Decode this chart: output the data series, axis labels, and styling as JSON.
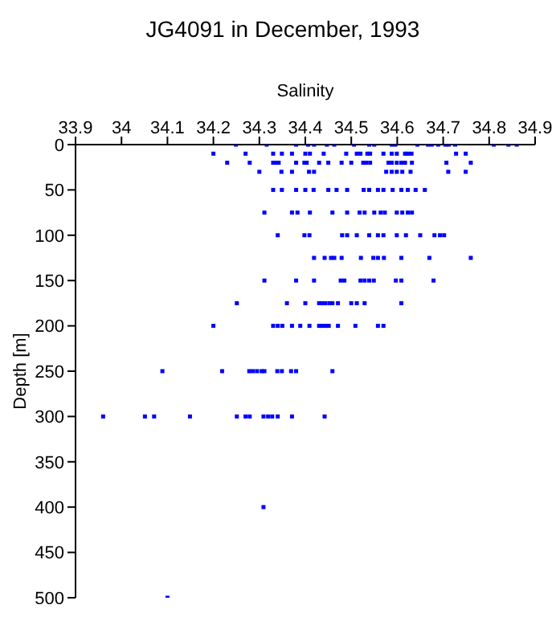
{
  "chart_data": {
    "type": "scatter",
    "title": "JG4091 in December, 1993",
    "xlabel": "Salinity",
    "ylabel": "Depth [m]",
    "color": "#0000ff",
    "marker": "square",
    "xlim": [
      33.9,
      34.9
    ],
    "xticks": [
      33.9,
      34,
      34.1,
      34.2,
      34.3,
      34.4,
      34.5,
      34.6,
      34.7,
      34.8,
      34.9
    ],
    "ylim": [
      500,
      0
    ],
    "yticks": [
      0,
      50,
      100,
      150,
      200,
      250,
      300,
      350,
      400,
      450,
      500
    ],
    "x": [
      34.249,
      34.316,
      34.38,
      34.406,
      34.419,
      34.447,
      34.463,
      34.506,
      34.539,
      34.55,
      34.588,
      34.596,
      34.644,
      34.667,
      34.675,
      34.689,
      34.705,
      34.712,
      34.726,
      34.81,
      34.842,
      34.86,
      34.2,
      34.27,
      34.33,
      34.349,
      34.371,
      34.4,
      34.41,
      34.44,
      34.489,
      34.512,
      34.52,
      34.535,
      34.541,
      34.57,
      34.588,
      34.599,
      34.617,
      34.623,
      34.631,
      34.728,
      34.749,
      34.23,
      34.279,
      34.33,
      34.337,
      34.342,
      34.38,
      34.398,
      34.403,
      34.43,
      34.45,
      34.479,
      34.5,
      34.526,
      34.532,
      34.541,
      34.581,
      34.588,
      34.599,
      34.609,
      34.617,
      34.632,
      34.707,
      34.76,
      34.3,
      34.348,
      34.371,
      34.408,
      34.419,
      34.576,
      34.588,
      34.599,
      34.611,
      34.629,
      34.711,
      34.749,
      34.33,
      34.349,
      34.38,
      34.4,
      34.418,
      34.45,
      34.468,
      34.491,
      34.527,
      34.539,
      34.558,
      34.57,
      34.59,
      34.609,
      34.623,
      34.64,
      34.66,
      34.311,
      34.371,
      34.383,
      34.41,
      34.459,
      34.491,
      34.518,
      34.529,
      34.55,
      34.564,
      34.573,
      34.599,
      34.611,
      34.623,
      34.632,
      34.34,
      34.398,
      34.409,
      34.48,
      34.491,
      34.512,
      34.539,
      34.558,
      34.57,
      34.599,
      34.619,
      34.65,
      34.681,
      34.693,
      34.702,
      34.419,
      34.442,
      34.456,
      34.463,
      34.479,
      34.521,
      34.548,
      34.558,
      34.571,
      34.609,
      34.67,
      34.76,
      34.311,
      34.38,
      34.419,
      34.477,
      34.485,
      34.52,
      34.529,
      34.539,
      34.549,
      34.597,
      34.609,
      34.679,
      34.251,
      34.36,
      34.4,
      34.43,
      34.436,
      34.444,
      34.453,
      34.459,
      34.471,
      34.5,
      34.512,
      34.529,
      34.609,
      34.2,
      34.33,
      34.34,
      34.35,
      34.371,
      34.389,
      34.409,
      34.43,
      34.436,
      34.444,
      34.451,
      34.471,
      34.509,
      34.558,
      34.57,
      34.089,
      34.219,
      34.278,
      34.286,
      34.295,
      34.305,
      34.311,
      34.339,
      34.349,
      34.369,
      34.38,
      34.459,
      33.96,
      34.051,
      34.071,
      34.149,
      34.251,
      34.27,
      34.279,
      34.309,
      34.319,
      34.328,
      34.34,
      34.371,
      34.442,
      34.309,
      34.1
    ],
    "values": [
      0,
      0,
      0,
      0,
      0,
      0,
      0,
      0,
      0,
      0,
      0,
      0,
      0,
      0,
      0,
      0,
      0,
      0,
      0,
      0,
      0,
      0,
      10,
      10,
      10,
      10,
      10,
      10,
      10,
      10,
      10,
      10,
      10,
      10,
      10,
      10,
      10,
      10,
      10,
      10,
      10,
      10,
      10,
      20,
      20,
      20,
      20,
      20,
      20,
      20,
      20,
      20,
      20,
      20,
      20,
      20,
      20,
      20,
      20,
      20,
      20,
      20,
      20,
      20,
      20,
      20,
      30,
      30,
      30,
      30,
      30,
      30,
      30,
      30,
      30,
      30,
      30,
      30,
      50,
      50,
      50,
      50,
      50,
      50,
      50,
      50,
      50,
      50,
      50,
      50,
      50,
      50,
      50,
      50,
      50,
      75,
      75,
      75,
      75,
      75,
      75,
      75,
      75,
      75,
      75,
      75,
      75,
      75,
      75,
      75,
      100,
      100,
      100,
      100,
      100,
      100,
      100,
      100,
      100,
      100,
      100,
      100,
      100,
      100,
      100,
      125,
      125,
      125,
      125,
      125,
      125,
      125,
      125,
      125,
      125,
      125,
      125,
      150,
      150,
      150,
      150,
      150,
      150,
      150,
      150,
      150,
      150,
      150,
      150,
      175,
      175,
      175,
      175,
      175,
      175,
      175,
      175,
      175,
      175,
      175,
      175,
      175,
      200,
      200,
      200,
      200,
      200,
      200,
      200,
      200,
      200,
      200,
      200,
      200,
      200,
      200,
      200,
      250,
      250,
      250,
      250,
      250,
      250,
      250,
      250,
      250,
      250,
      250,
      250,
      300,
      300,
      300,
      300,
      300,
      300,
      300,
      300,
      300,
      300,
      300,
      300,
      300,
      400,
      500
    ]
  }
}
